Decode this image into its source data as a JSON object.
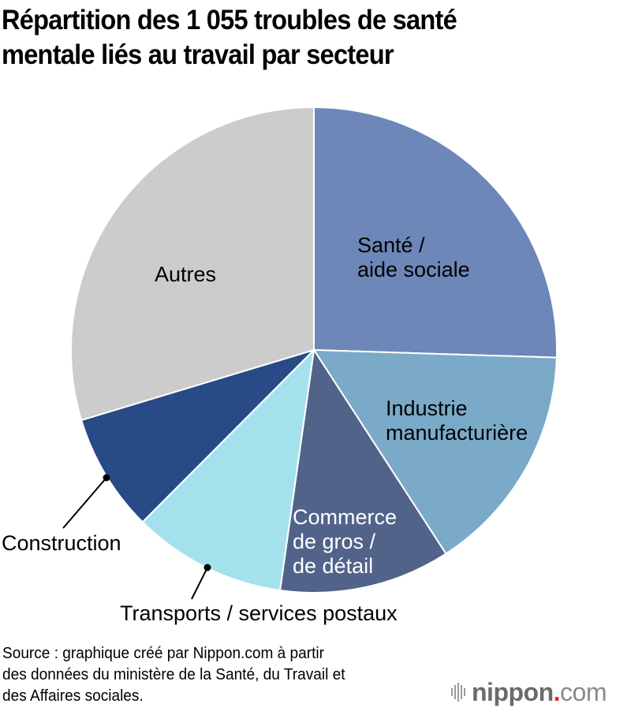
{
  "title": {
    "line1": "Répartition des 1 055 troubles de santé",
    "line2": "mentale liés au travail par secteur"
  },
  "labels": {
    "sante": [
      "Santé /",
      "aide sociale"
    ],
    "industrie": [
      "Industrie",
      "manufacturière"
    ],
    "commerce": [
      "Commerce",
      "de gros /",
      "de détail"
    ],
    "transports": "Transports / services postaux",
    "construction": "Construction",
    "autres": "Autres"
  },
  "source": {
    "line1": "Source : graphique créé par Nippon.com à partir",
    "line2": "des données du ministère de la Santé, du Travail et",
    "line3": "des Affaires sociales."
  },
  "logo": {
    "name": "nippon",
    "dot": ".",
    "tld": "com",
    "accent_color": "#e0242c"
  },
  "chart_data": {
    "type": "pie",
    "title": "Répartition des 1 055 troubles de santé mentale liés au travail par secteur",
    "total": 1055,
    "categories": [
      "Santé / aide sociale",
      "Industrie manufacturière",
      "Commerce de gros / de détail",
      "Transports / services postaux",
      "Construction",
      "Autres"
    ],
    "values": [
      269,
      162,
      120,
      108,
      83,
      313
    ],
    "percent_estimated": [
      25.5,
      15.3,
      11.4,
      10.3,
      7.8,
      29.7
    ],
    "colors": [
      "#6c87b8",
      "#7aaac8",
      "#52638a",
      "#a3e2ec",
      "#284a86",
      "#cccccc"
    ],
    "start_angle_deg": 0,
    "direction": "clockwise",
    "legend": "none (direct labels)",
    "note": "Values estimated from slice angles; no numeric labels shown."
  }
}
